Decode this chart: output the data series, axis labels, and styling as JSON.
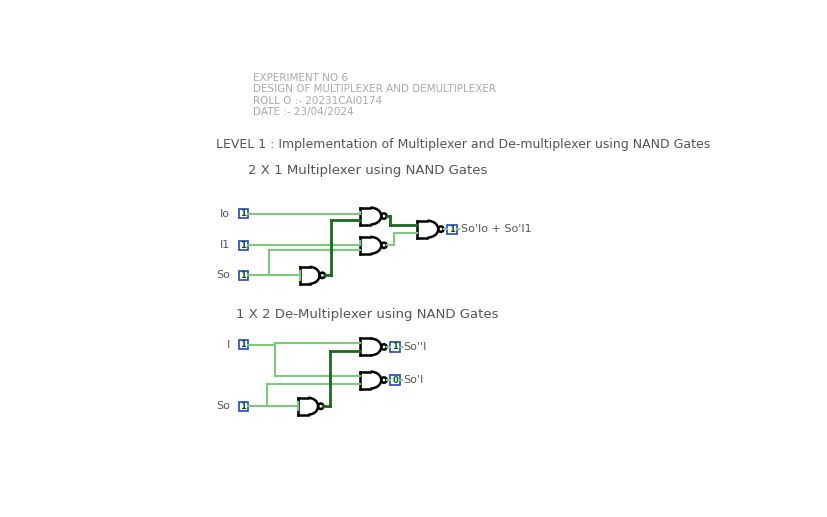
{
  "title_lines": [
    "EXPERIMENT NO 6",
    "DESIGN OF MULTIPLEXER AND DEMULTIPLEXER",
    "ROLL O :- 20231CAI0174",
    "DATE :- 23/04/2024"
  ],
  "level_text": "LEVEL 1 : Implementation of Multiplexer and De-multiplexer using NAND Gates",
  "mux_title": "2 X 1 Multiplexer using NAND Gates",
  "demux_title": "1 X 2 De-Multiplexer using NAND Gates",
  "bg_color": "#ffffff",
  "dark_green": "#1a6b1a",
  "light_green": "#7acc7a",
  "title_color": "#aaaaaa",
  "text_color": "#555555",
  "box_border": "#2244cc",
  "box_text_color": "#006600"
}
